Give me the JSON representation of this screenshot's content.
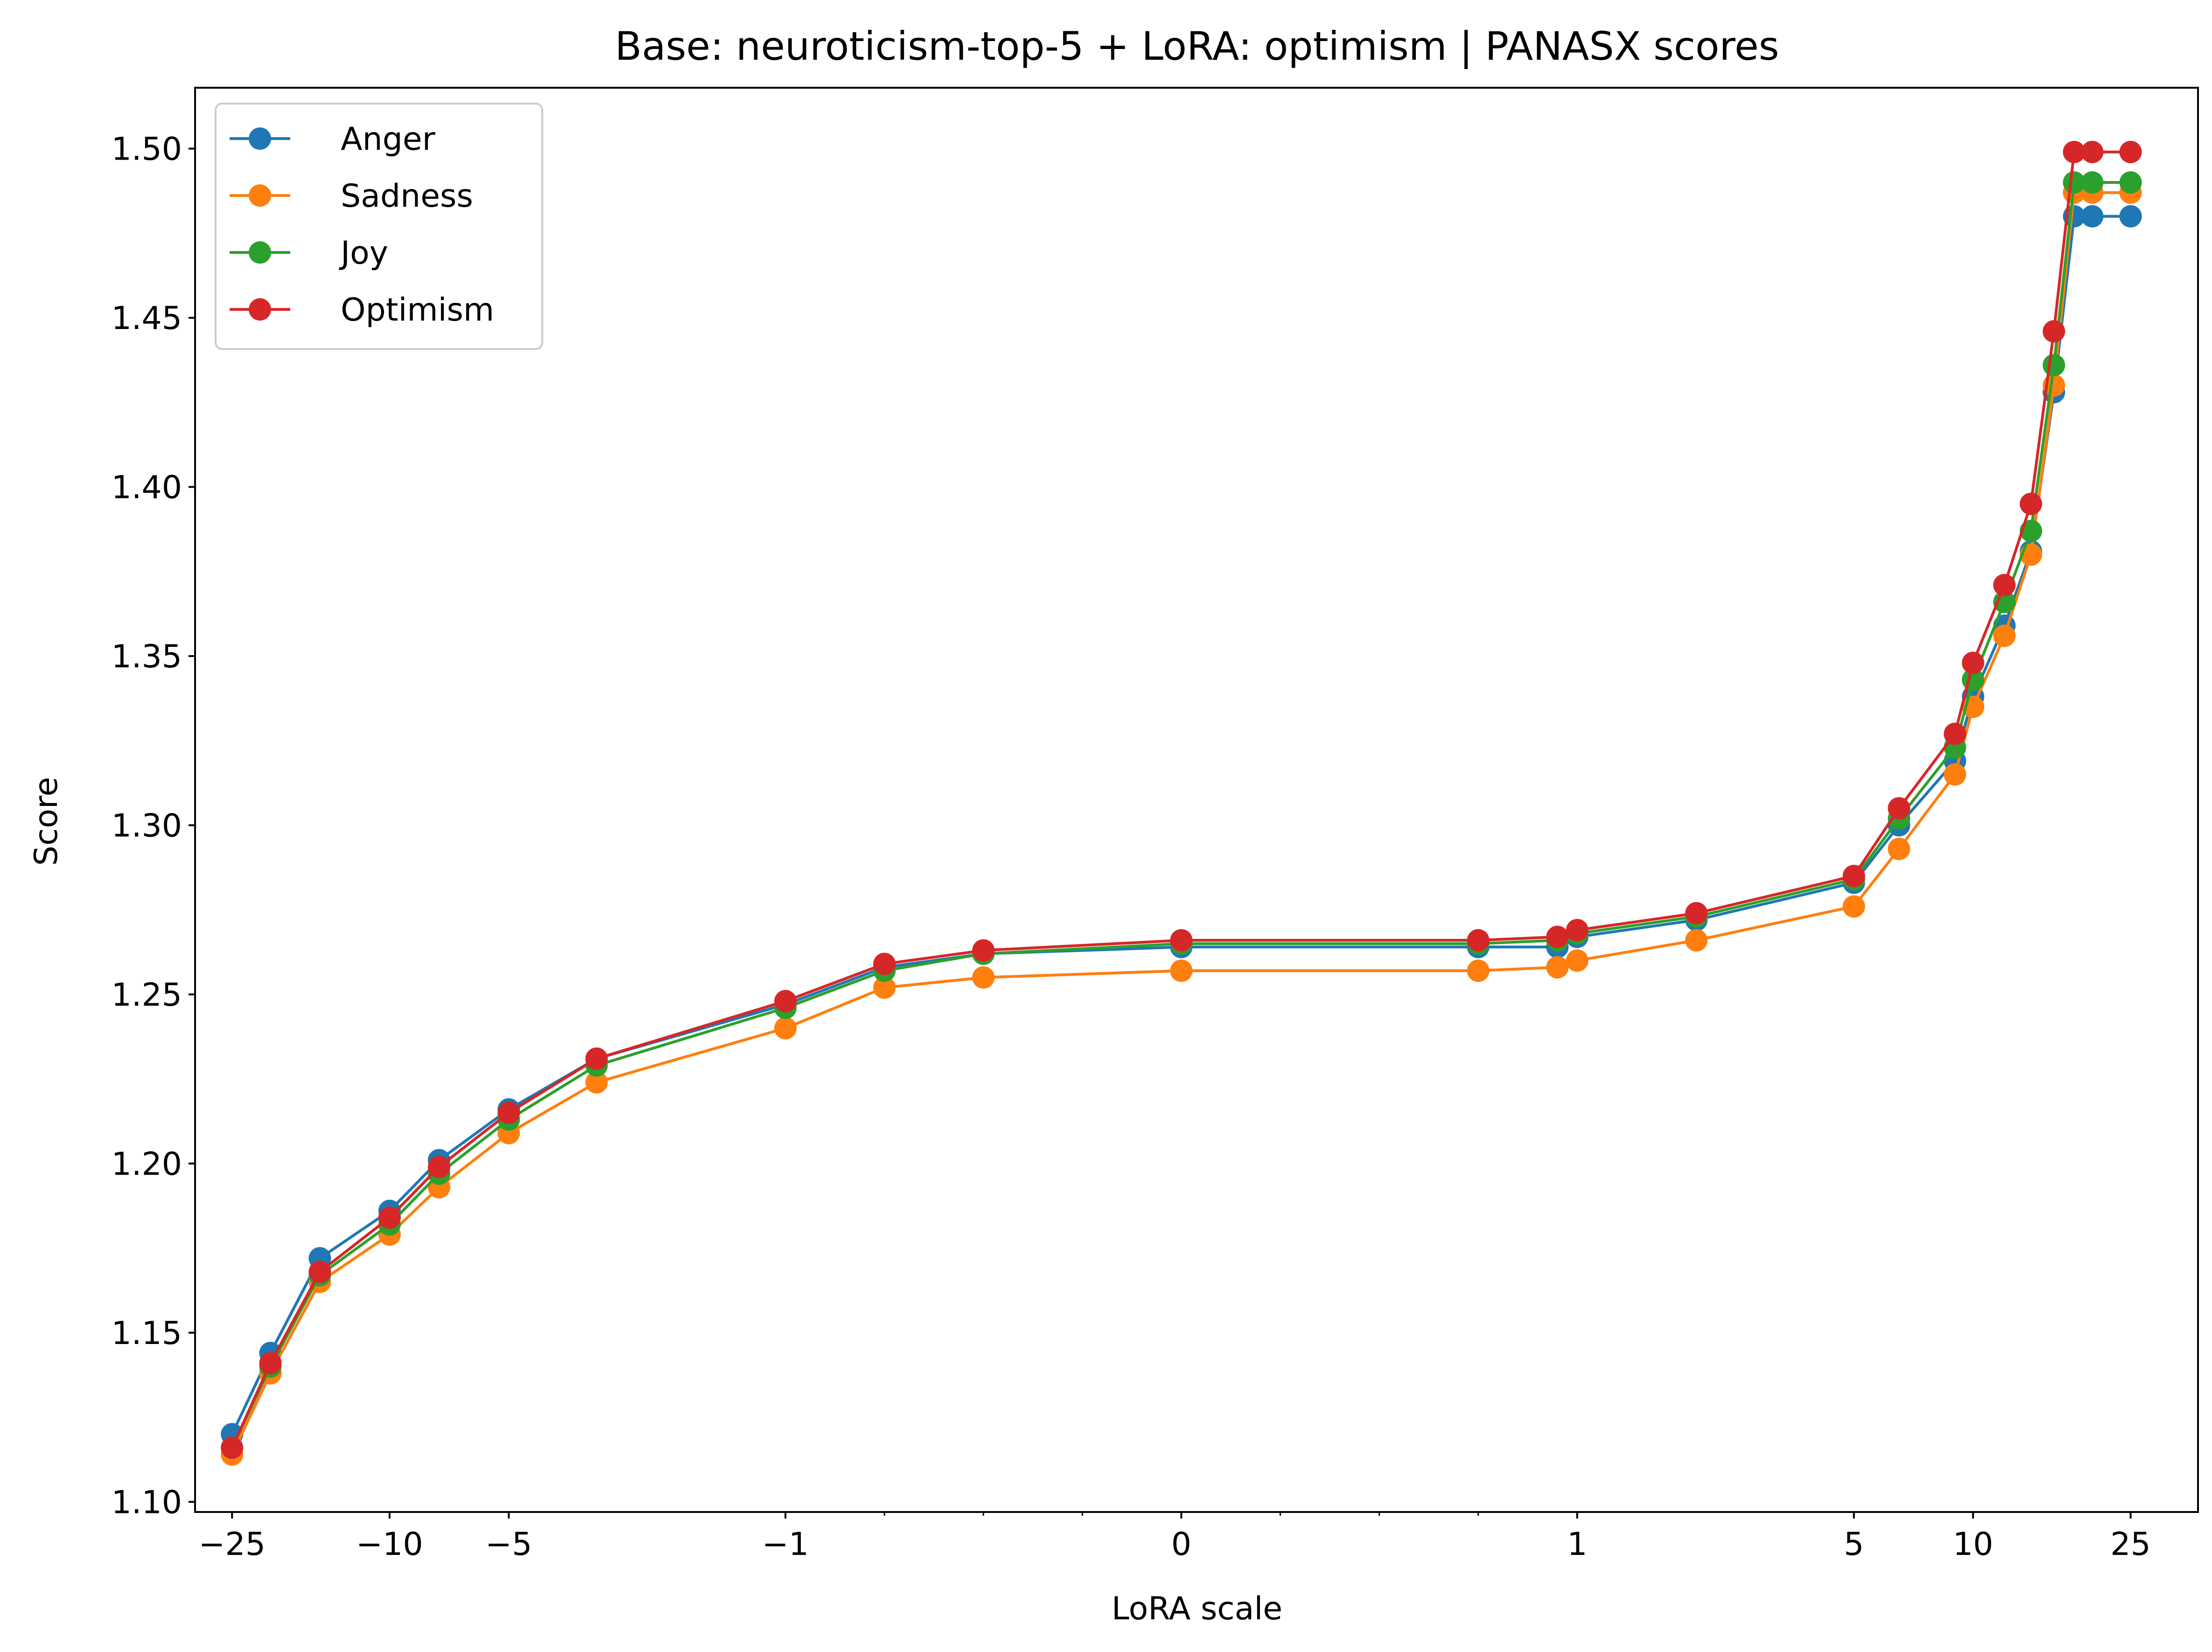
{
  "chart_data": {
    "type": "line",
    "title": "Base: neuroticism-top-5 + LoRA: optimism | PANASX scores",
    "xlabel": "LoRA scale",
    "ylabel": "Score",
    "x_scale": "symlog",
    "x_scale_linthresh": 1,
    "xlim": [
      -31,
      37
    ],
    "ylim": [
      1.097,
      1.518
    ],
    "grid": false,
    "legend_position": "top-left",
    "x": [
      -25,
      -20,
      -15,
      -10,
      -7.5,
      -5,
      -3,
      -1,
      -0.75,
      -0.5,
      0,
      0.75,
      0.95,
      1,
      2,
      5,
      6.5,
      9,
      10,
      12,
      14,
      16,
      18,
      20,
      25
    ],
    "x_ticks": [
      {
        "value": -25,
        "label": "−25"
      },
      {
        "value": -10,
        "label": "−10"
      },
      {
        "value": -5,
        "label": "−5"
      },
      {
        "value": -1,
        "label": "−1"
      },
      {
        "value": 0,
        "label": "0"
      },
      {
        "value": 1,
        "label": "1"
      },
      {
        "value": 5,
        "label": "5"
      },
      {
        "value": 10,
        "label": "10"
      },
      {
        "value": 25,
        "label": "25"
      }
    ],
    "x_minor_ticks": [
      -0.75,
      -0.5,
      -0.25,
      0.25,
      0.5,
      0.75
    ],
    "y_ticks": [
      {
        "value": 1.1,
        "label": "1.10"
      },
      {
        "value": 1.15,
        "label": "1.15"
      },
      {
        "value": 1.2,
        "label": "1.20"
      },
      {
        "value": 1.25,
        "label": "1.25"
      },
      {
        "value": 1.3,
        "label": "1.30"
      },
      {
        "value": 1.35,
        "label": "1.35"
      },
      {
        "value": 1.4,
        "label": "1.40"
      },
      {
        "value": 1.45,
        "label": "1.45"
      },
      {
        "value": 1.5,
        "label": "1.50"
      }
    ],
    "series": [
      {
        "name": "Anger",
        "color": "#1f77b4",
        "values": [
          1.12,
          1.144,
          1.172,
          1.186,
          1.201,
          1.216,
          1.231,
          1.247,
          1.258,
          1.262,
          1.264,
          1.264,
          1.264,
          1.267,
          1.272,
          1.283,
          1.3,
          1.319,
          1.338,
          1.359,
          1.381,
          1.428,
          1.48,
          1.48,
          1.48
        ]
      },
      {
        "name": "Sadness",
        "color": "#ff7f0e",
        "values": [
          1.114,
          1.138,
          1.165,
          1.179,
          1.193,
          1.209,
          1.224,
          1.24,
          1.252,
          1.255,
          1.257,
          1.257,
          1.258,
          1.26,
          1.266,
          1.276,
          1.293,
          1.315,
          1.335,
          1.356,
          1.38,
          1.43,
          1.487,
          1.487,
          1.487
        ]
      },
      {
        "name": "Joy",
        "color": "#2ca02c",
        "values": [
          1.116,
          1.14,
          1.167,
          1.182,
          1.197,
          1.213,
          1.229,
          1.246,
          1.257,
          1.262,
          1.265,
          1.265,
          1.266,
          1.268,
          1.273,
          1.284,
          1.302,
          1.323,
          1.343,
          1.366,
          1.387,
          1.436,
          1.49,
          1.49,
          1.49
        ]
      },
      {
        "name": "Optimism",
        "color": "#d62728",
        "values": [
          1.116,
          1.141,
          1.168,
          1.184,
          1.199,
          1.215,
          1.231,
          1.248,
          1.259,
          1.263,
          1.266,
          1.266,
          1.267,
          1.269,
          1.274,
          1.285,
          1.305,
          1.327,
          1.348,
          1.371,
          1.395,
          1.446,
          1.499,
          1.499,
          1.499
        ]
      }
    ]
  }
}
